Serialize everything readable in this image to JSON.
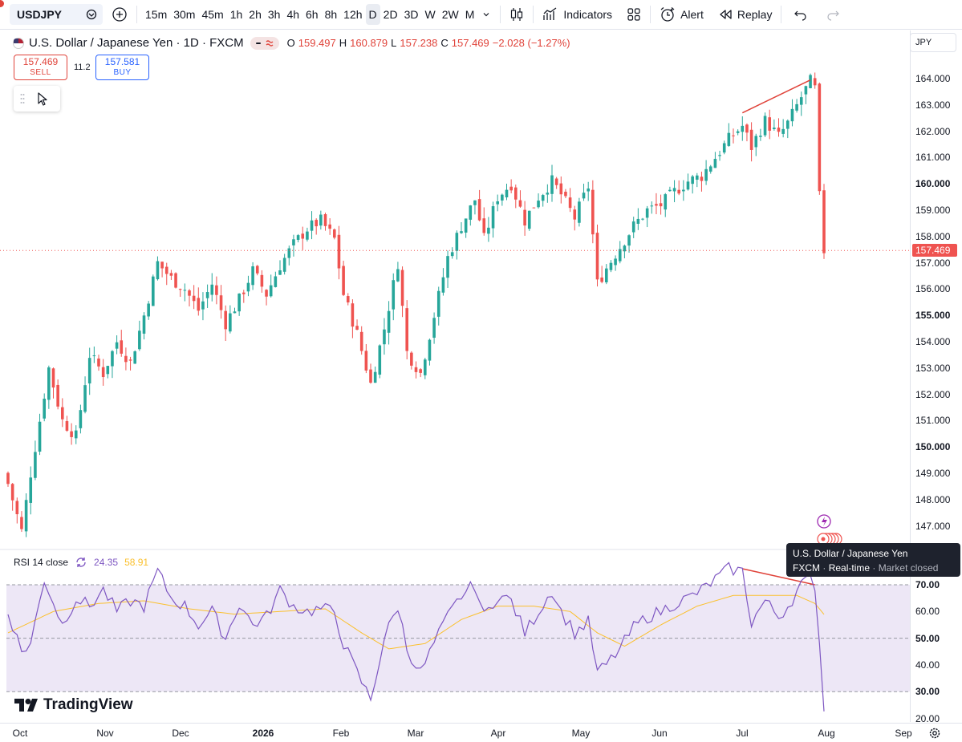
{
  "toolbar": {
    "symbol": "USDJPY",
    "intervals": [
      "15m",
      "30m",
      "45m",
      "1h",
      "2h",
      "3h",
      "4h",
      "6h",
      "8h",
      "12h",
      "D",
      "2D",
      "3D",
      "W",
      "2W",
      "M"
    ],
    "active_interval": "D",
    "indicators_label": "Indicators",
    "alert_label": "Alert",
    "replay_label": "Replay"
  },
  "legend": {
    "title": "U.S. Dollar / Japanese Yen · 1D · FXCM",
    "open_label": "O",
    "open": "159.497",
    "high_label": "H",
    "high": "160.879",
    "low_label": "L",
    "low": "157.238",
    "close_label": "C",
    "close": "157.469",
    "change": "−2.028 (−1.27%)"
  },
  "trade": {
    "sell_price": "157.469",
    "sell_label": "SELL",
    "spread": "11.2",
    "buy_price": "157.581",
    "buy_label": "BUY"
  },
  "currency": "JPY",
  "rsi": {
    "label": "RSI 14 close",
    "value": "24.35",
    "ma_value": "58.91"
  },
  "tooltip": {
    "title": "U.S. Dollar / Japanese Yen",
    "source": "FXCM",
    "status": "Real-time",
    "market": "Market closed"
  },
  "watermark": "TradingView",
  "colors": {
    "up": "#26a69a",
    "down": "#ef5350",
    "rsi_line": "#7e57c2",
    "rsi_ma": "#fbc02d",
    "trendline": "#e0433a",
    "rsi_band": "#ede7f6"
  },
  "chart_data": {
    "type": "candlestick",
    "price_axis": {
      "ticks": [
        "164.000",
        "163.000",
        "162.000",
        "161.000",
        "160.000",
        "159.000",
        "158.000",
        "157.000",
        "156.000",
        "155.000",
        "154.000",
        "153.000",
        "152.000",
        "151.000",
        "150.000",
        "149.000",
        "148.000",
        "147.000"
      ],
      "last_price": "157.469"
    },
    "rsi_axis": {
      "ticks": [
        "70.00",
        "60.00",
        "50.00",
        "40.00",
        "30.00",
        "20.00"
      ],
      "upper_band": 70,
      "middle": 50,
      "lower_band": 30
    },
    "time_axis": [
      "Oct",
      "Nov",
      "Dec",
      "2026",
      "Feb",
      "Mar",
      "Apr",
      "May",
      "Jun",
      "Jul",
      "Aug",
      "Sep"
    ],
    "close_path": [
      [
        0,
        148.6
      ],
      [
        3,
        146.8
      ],
      [
        5,
        149.0
      ],
      [
        9,
        153.0
      ],
      [
        12,
        151.0
      ],
      [
        15,
        150.4
      ],
      [
        18,
        153.5
      ],
      [
        21,
        152.8
      ],
      [
        24,
        154.0
      ],
      [
        27,
        153.2
      ],
      [
        30,
        155.0
      ],
      [
        33,
        157.0
      ],
      [
        36,
        156.4
      ],
      [
        39,
        156.0
      ],
      [
        42,
        155.2
      ],
      [
        45,
        156.2
      ],
      [
        48,
        154.7
      ],
      [
        51,
        155.6
      ],
      [
        54,
        156.7
      ],
      [
        57,
        155.8
      ],
      [
        60,
        156.9
      ],
      [
        63,
        157.7
      ],
      [
        66,
        158.3
      ],
      [
        69,
        158.6
      ],
      [
        72,
        157.9
      ],
      [
        74,
        155.8
      ],
      [
        77,
        154.3
      ],
      [
        80,
        152.4
      ],
      [
        83,
        154.5
      ],
      [
        86,
        157.0
      ],
      [
        88,
        153.6
      ],
      [
        91,
        152.8
      ],
      [
        94,
        155.0
      ],
      [
        97,
        157.2
      ],
      [
        100,
        158.4
      ],
      [
        103,
        159.4
      ],
      [
        105,
        157.9
      ],
      [
        108,
        159.5
      ],
      [
        111,
        160.0
      ],
      [
        114,
        158.6
      ],
      [
        117,
        159.5
      ],
      [
        120,
        160.1
      ],
      [
        122,
        159.6
      ],
      [
        125,
        158.7
      ],
      [
        128,
        159.9
      ],
      [
        130,
        156.2
      ],
      [
        132,
        156.8
      ],
      [
        135,
        157.6
      ],
      [
        138,
        158.4
      ],
      [
        141,
        159.0
      ],
      [
        144,
        159.2
      ],
      [
        147,
        159.7
      ],
      [
        150,
        160.1
      ],
      [
        153,
        160.3
      ],
      [
        156,
        161.0
      ],
      [
        159,
        161.7
      ],
      [
        162,
        162.2
      ],
      [
        164,
        161.4
      ],
      [
        167,
        162.4
      ],
      [
        170,
        161.8
      ],
      [
        172,
        162.3
      ],
      [
        175,
        163.3
      ],
      [
        177,
        163.9
      ],
      [
        178,
        163.6
      ],
      [
        179,
        159.5
      ],
      [
        180,
        157.47
      ]
    ],
    "rsi_path": [
      [
        0,
        60
      ],
      [
        3,
        45
      ],
      [
        5,
        48
      ],
      [
        8,
        72
      ],
      [
        12,
        55
      ],
      [
        15,
        65
      ],
      [
        18,
        62
      ],
      [
        21,
        68
      ],
      [
        24,
        60
      ],
      [
        27,
        64
      ],
      [
        30,
        62
      ],
      [
        33,
        75
      ],
      [
        36,
        65
      ],
      [
        39,
        62
      ],
      [
        42,
        55
      ],
      [
        45,
        60
      ],
      [
        48,
        50
      ],
      [
        51,
        63
      ],
      [
        54,
        55
      ],
      [
        57,
        58
      ],
      [
        60,
        68
      ],
      [
        63,
        62
      ],
      [
        66,
        60
      ],
      [
        69,
        61
      ],
      [
        72,
        60
      ],
      [
        74,
        48
      ],
      [
        77,
        37
      ],
      [
        80,
        27
      ],
      [
        83,
        50
      ],
      [
        86,
        62
      ],
      [
        88,
        46
      ],
      [
        91,
        37
      ],
      [
        94,
        48
      ],
      [
        97,
        58
      ],
      [
        100,
        66
      ],
      [
        103,
        70
      ],
      [
        105,
        58
      ],
      [
        108,
        66
      ],
      [
        111,
        64
      ],
      [
        114,
        52
      ],
      [
        117,
        60
      ],
      [
        120,
        68
      ],
      [
        122,
        60
      ],
      [
        125,
        52
      ],
      [
        128,
        56
      ],
      [
        130,
        37
      ],
      [
        132,
        40
      ],
      [
        135,
        46
      ],
      [
        138,
        54
      ],
      [
        141,
        58
      ],
      [
        144,
        60
      ],
      [
        147,
        63
      ],
      [
        150,
        65
      ],
      [
        153,
        68
      ],
      [
        156,
        72
      ],
      [
        159,
        76
      ],
      [
        162,
        75
      ],
      [
        164,
        56
      ],
      [
        167,
        64
      ],
      [
        170,
        58
      ],
      [
        172,
        62
      ],
      [
        175,
        70
      ],
      [
        177,
        72
      ],
      [
        178,
        70
      ],
      [
        179,
        48
      ],
      [
        180,
        24.35
      ]
    ],
    "rsi_ma_path": [
      [
        0,
        52
      ],
      [
        10,
        60
      ],
      [
        20,
        63
      ],
      [
        30,
        64
      ],
      [
        40,
        61
      ],
      [
        50,
        59
      ],
      [
        60,
        60
      ],
      [
        70,
        61
      ],
      [
        78,
        52
      ],
      [
        84,
        46
      ],
      [
        92,
        48
      ],
      [
        100,
        57
      ],
      [
        108,
        62
      ],
      [
        116,
        62
      ],
      [
        124,
        60
      ],
      [
        130,
        52
      ],
      [
        136,
        47
      ],
      [
        144,
        55
      ],
      [
        152,
        62
      ],
      [
        160,
        66
      ],
      [
        168,
        66
      ],
      [
        174,
        66
      ],
      [
        178,
        63
      ],
      [
        180,
        58.91
      ]
    ]
  }
}
